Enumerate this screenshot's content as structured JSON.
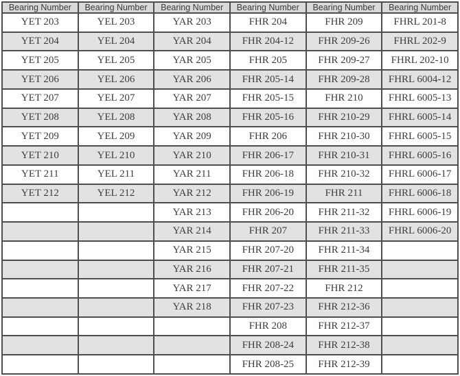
{
  "table": {
    "header_label": "Bearing Number",
    "num_columns": 6,
    "colors": {
      "header_bg": "#d9d9d9",
      "row_bg": "#ffffff",
      "row_alt_bg": "#e2e2e2",
      "border": "#4d4d4d",
      "text": "#3d3d3d"
    },
    "rows": [
      [
        "YET 203",
        "YEL 203",
        "YAR 203",
        "FHR 204",
        "FHR 209",
        "FHRL 201-8"
      ],
      [
        "YET 204",
        "YEL 204",
        "YAR 204",
        "FHR 204-12",
        "FHR 209-26",
        "FHRL 202-9"
      ],
      [
        "YET 205",
        "YEL 205",
        "YAR 205",
        "FHR 205",
        "FHR 209-27",
        "FHRL 202-10"
      ],
      [
        "YET 206",
        "YEL 206",
        "YAR 206",
        "FHR 205-14",
        "FHR 209-28",
        "FHRL 6004-12"
      ],
      [
        "YET 207",
        "YEL 207",
        "YAR 207",
        "FHR 205-15",
        "FHR 210",
        "FHRL 6005-13"
      ],
      [
        "YET 208",
        "YEL 208",
        "YAR 208",
        "FHR 205-16",
        "FHR 210-29",
        "FHRL 6005-14"
      ],
      [
        "YET 209",
        "YEL 209",
        "YAR 209",
        "FHR 206",
        "FHR 210-30",
        "FHRL 6005-15"
      ],
      [
        "YET 210",
        "YEL 210",
        "YAR 210",
        "FHR 206-17",
        "FHR 210-31",
        "FHRL 6005-16"
      ],
      [
        "YET 211",
        "YEL 211",
        "YAR 211",
        "FHR 206-18",
        "FHR 210-32",
        "FHRL 6006-17"
      ],
      [
        "YET 212",
        "YEL 212",
        "YAR 212",
        "FHR 206-19",
        "FHR 211",
        "FHRL 6006-18"
      ],
      [
        "",
        "",
        "YAR 213",
        "FHR 206-20",
        "FHR 211-32",
        "FHRL 6006-19"
      ],
      [
        "",
        "",
        "YAR 214",
        "FHR 207",
        "FHR 211-33",
        "FHRL 6006-20"
      ],
      [
        "",
        "",
        "YAR 215",
        "FHR 207-20",
        "FHR 211-34",
        ""
      ],
      [
        "",
        "",
        "YAR 216",
        "FHR 207-21",
        "FHR 211-35",
        ""
      ],
      [
        "",
        "",
        "YAR 217",
        "FHR 207-22",
        "FHR 212",
        ""
      ],
      [
        "",
        "",
        "YAR 218",
        "FHR 207-23",
        "FHR 212-36",
        ""
      ],
      [
        "",
        "",
        "",
        "FHR 208",
        "FHR 212-37",
        ""
      ],
      [
        "",
        "",
        "",
        "FHR 208-24",
        "FHR 212-38",
        ""
      ],
      [
        "",
        "",
        "",
        "FHR 208-25",
        "FHR 212-39",
        ""
      ]
    ]
  }
}
